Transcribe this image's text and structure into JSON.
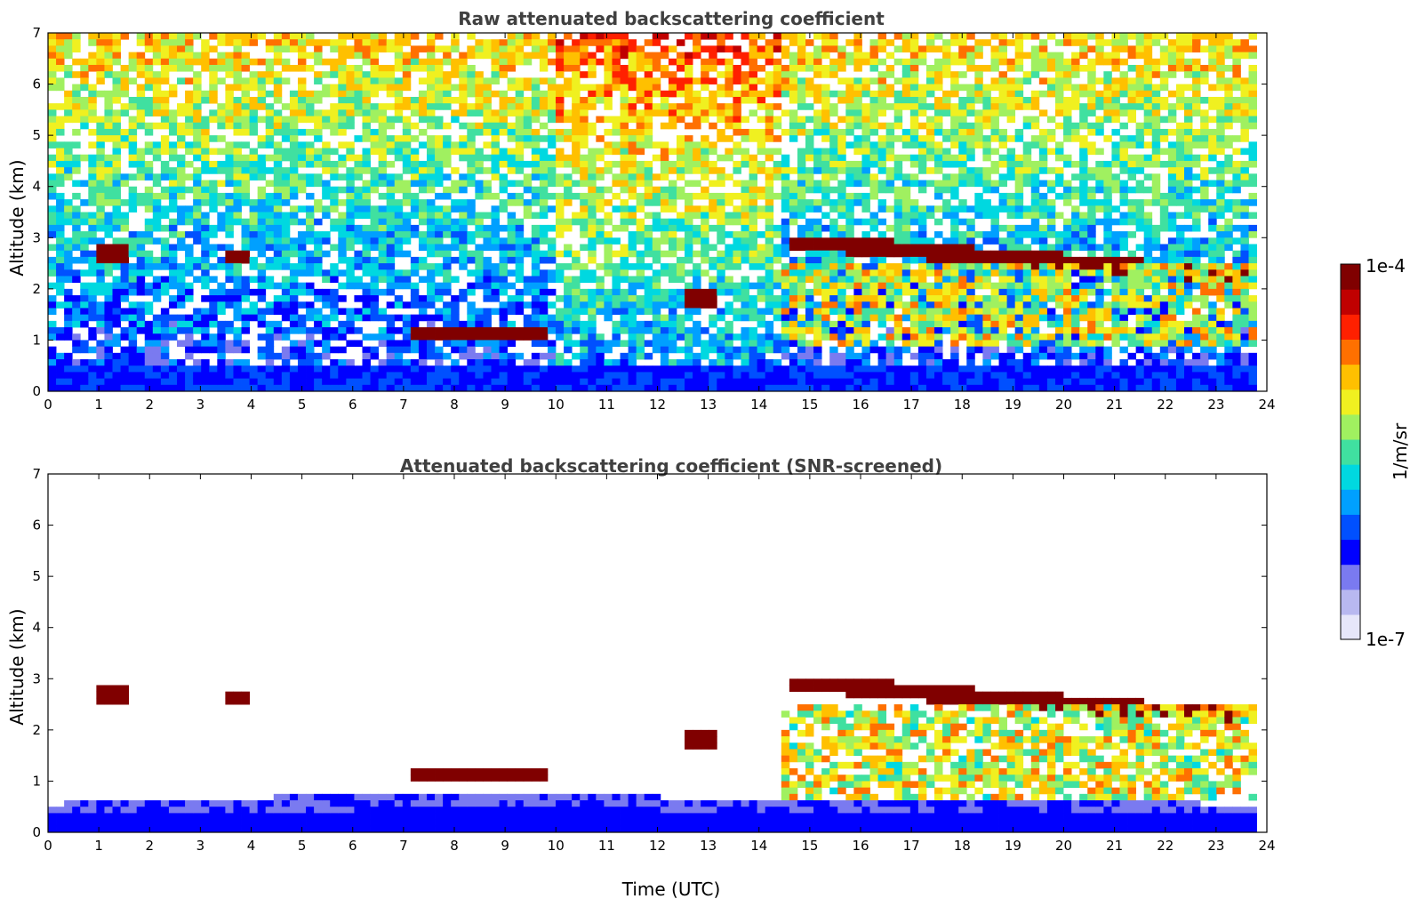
{
  "chart_data": [
    {
      "type": "heatmap",
      "title": "Raw attenuated backscattering coefficient",
      "xlabel": "",
      "ylabel": "Altitude (km)",
      "xlim": [
        0,
        24
      ],
      "ylim": [
        0,
        7
      ],
      "x_ticks": [
        "0",
        "1",
        "2",
        "3",
        "4",
        "5",
        "6",
        "7",
        "8",
        "9",
        "10",
        "11",
        "12",
        "13",
        "14",
        "15",
        "16",
        "17",
        "18",
        "19",
        "20",
        "21",
        "22",
        "23",
        "24"
      ],
      "y_ticks": [
        "0",
        "1",
        "2",
        "3",
        "4",
        "5",
        "6",
        "7"
      ],
      "data_coverage_hours": [
        0,
        23.8
      ],
      "features": [
        {
          "kind": "cloud",
          "x": [
            1.0,
            1.6
          ],
          "y": [
            2.5,
            2.9
          ],
          "level": "high"
        },
        {
          "kind": "cloud",
          "x": [
            3.5,
            4.0
          ],
          "y": [
            2.4,
            2.8
          ],
          "level": "high"
        },
        {
          "kind": "cloud",
          "x": [
            7.2,
            9.9
          ],
          "y": [
            1.0,
            1.3
          ],
          "level": "high"
        },
        {
          "kind": "cloud",
          "x": [
            12.6,
            13.1
          ],
          "y": [
            1.6,
            2.0
          ],
          "level": "high"
        },
        {
          "kind": "cloud",
          "x": [
            14.6,
            23.8
          ],
          "y": [
            2.1,
            3.0
          ],
          "level": "high"
        },
        {
          "kind": "precip",
          "x": [
            14.4,
            23.8
          ],
          "y": [
            0.9,
            2.5
          ],
          "level": "mid"
        }
      ]
    },
    {
      "type": "heatmap",
      "title": "Attenuated backscattering coefficient (SNR-screened)",
      "xlabel": "Time (UTC)",
      "ylabel": "Altitude (km)",
      "xlim": [
        0,
        24
      ],
      "ylim": [
        0,
        7
      ],
      "x_ticks": [
        "0",
        "1",
        "2",
        "3",
        "4",
        "5",
        "6",
        "7",
        "8",
        "9",
        "10",
        "11",
        "12",
        "13",
        "14",
        "15",
        "16",
        "17",
        "18",
        "19",
        "20",
        "21",
        "22",
        "23",
        "24"
      ],
      "y_ticks": [
        "0",
        "1",
        "2",
        "3",
        "4",
        "5",
        "6",
        "7"
      ],
      "data_coverage_hours": [
        0,
        23.8
      ],
      "features": [
        {
          "kind": "cloud",
          "x": [
            1.0,
            1.6
          ],
          "y": [
            2.5,
            2.9
          ],
          "level": "high"
        },
        {
          "kind": "cloud",
          "x": [
            3.5,
            4.0
          ],
          "y": [
            2.4,
            2.8
          ],
          "level": "high"
        },
        {
          "kind": "cloud",
          "x": [
            7.2,
            9.9
          ],
          "y": [
            1.0,
            1.3
          ],
          "level": "high"
        },
        {
          "kind": "cloud",
          "x": [
            12.6,
            13.1
          ],
          "y": [
            1.6,
            2.0
          ],
          "level": "high"
        },
        {
          "kind": "cloud",
          "x": [
            14.6,
            23.8
          ],
          "y": [
            2.1,
            3.0
          ],
          "level": "high"
        },
        {
          "kind": "precip",
          "x": [
            14.4,
            23.8
          ],
          "y": [
            0.6,
            2.5
          ],
          "level": "mid"
        }
      ]
    }
  ],
  "colorbar": {
    "label": "1/m/sr",
    "min_label": "1e-7",
    "max_label": "1e-4",
    "colors": [
      "#e6e6fa",
      "#b8b8f0",
      "#7a7af0",
      "#0000ff",
      "#0050ff",
      "#00a0ff",
      "#00d8e0",
      "#40e0a0",
      "#a0f060",
      "#f0f020",
      "#ffc000",
      "#ff7000",
      "#ff2000",
      "#c00000",
      "#800000"
    ]
  }
}
